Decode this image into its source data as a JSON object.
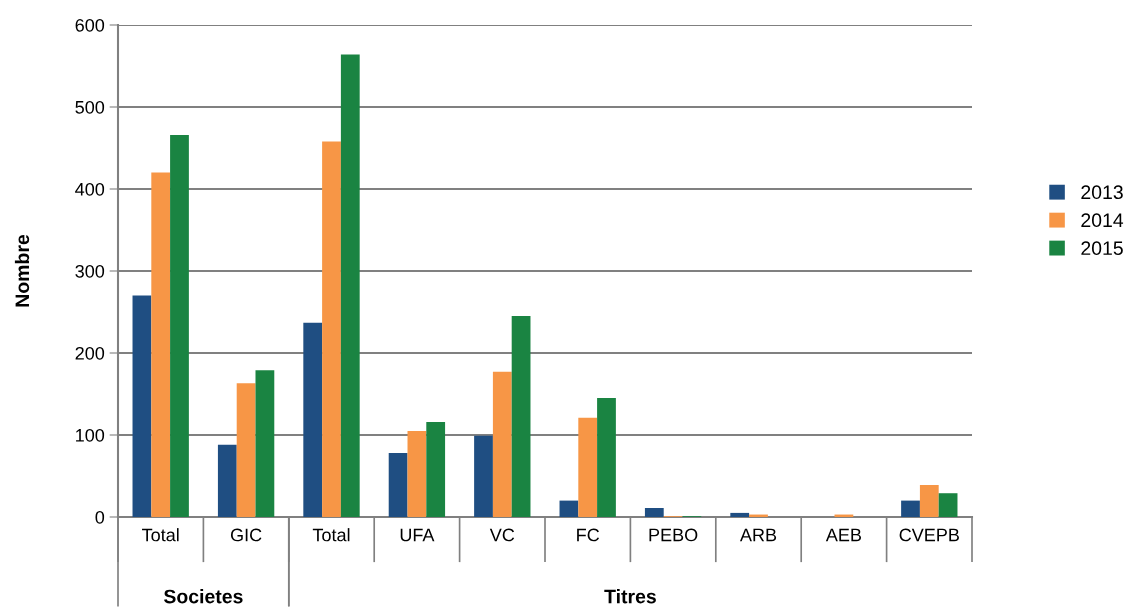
{
  "chart_data": {
    "type": "bar",
    "ylabel": "Nombre",
    "categories": [
      "Total",
      "GIC",
      "Total",
      "UFA",
      "VC",
      "FC",
      "PEBO",
      "ARB",
      "AEB",
      "CVEPB"
    ],
    "series": [
      {
        "name": "2013",
        "color": "#1f4e82",
        "values": [
          270,
          88,
          237,
          78,
          99,
          20,
          11,
          5,
          0,
          20
        ]
      },
      {
        "name": "2014",
        "color": "#f79646",
        "values": [
          420,
          163,
          458,
          105,
          177,
          121,
          1,
          3,
          3,
          39
        ]
      },
      {
        "name": "2015",
        "color": "#1a8442",
        "values": [
          466,
          179,
          564,
          116,
          245,
          145,
          1,
          0,
          0,
          29
        ]
      }
    ],
    "ylim": [
      0,
      600
    ],
    "yticks": [
      0,
      100,
      200,
      300,
      400,
      500,
      600
    ],
    "grid": "y",
    "legend": "right",
    "annotations": [
      "Societes",
      "Titres"
    ]
  }
}
